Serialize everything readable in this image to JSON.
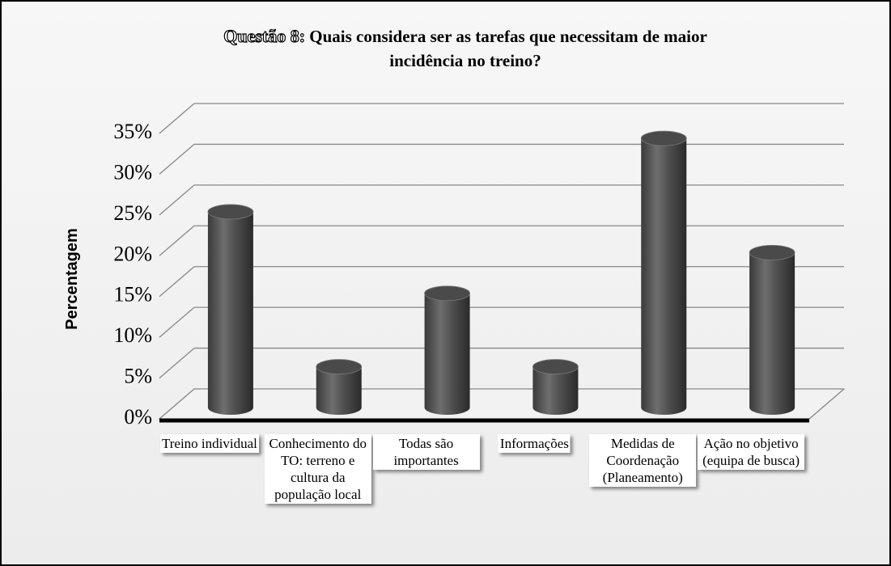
{
  "chart_data": {
    "type": "bar3d",
    "title_label": "Questão 8:",
    "title": "Quais considera ser as tarefas que necessitam de maior incidência no treino?",
    "y_label": "Percentagem",
    "categories": [
      "Treino individual",
      "Conhecimento do TO: terreno e cultura da população local",
      "Todas são importantes",
      "Informações",
      "Medidas de Coordenação (Planeamento)",
      "Ação no objetivo (equipa de busca)"
    ],
    "values": [
      24,
      5,
      14,
      5,
      33,
      19
    ],
    "color": "#555555",
    "ylim": [
      0,
      35
    ],
    "yticks": [
      {
        "value": 0,
        "label": "0%"
      },
      {
        "value": 5,
        "label": "5%"
      },
      {
        "value": 10,
        "label": "10%"
      },
      {
        "value": 15,
        "label": "15%"
      },
      {
        "value": 20,
        "label": "20%"
      },
      {
        "value": 25,
        "label": "25%"
      },
      {
        "value": 30,
        "label": "30%"
      },
      {
        "value": 35,
        "label": "35%"
      }
    ],
    "grid": true
  }
}
